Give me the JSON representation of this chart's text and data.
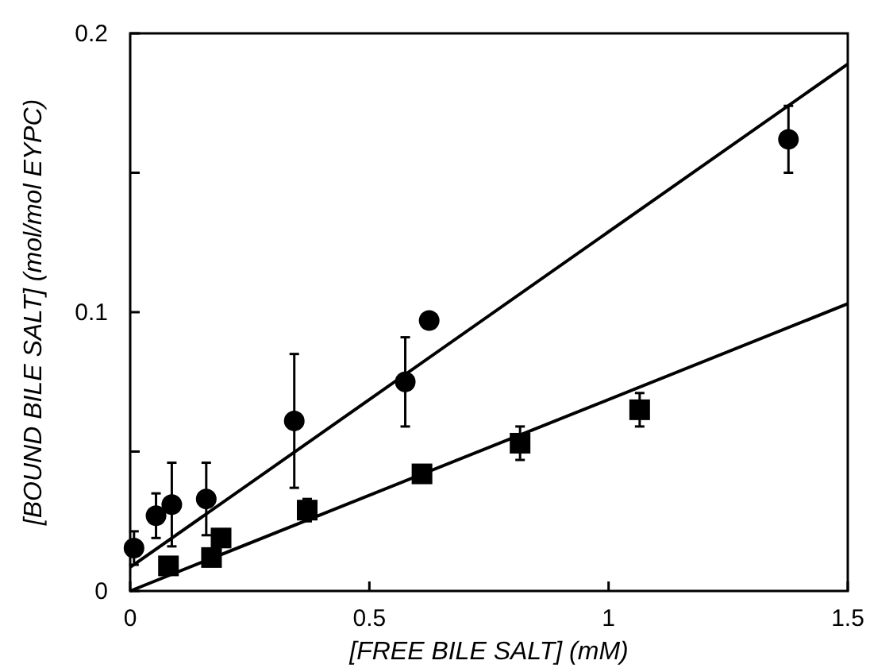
{
  "chart_data": {
    "type": "scatter",
    "xlabel": "[FREE BILE SALT] (mM)",
    "ylabel": "[BOUND BILE SALT] (mol/mol EYPC)",
    "xlim": [
      0,
      1.5
    ],
    "ylim": [
      0,
      0.2
    ],
    "xticks": [
      0,
      0.5,
      1,
      1.5
    ],
    "yticks": [
      0,
      {
        "value": 0.05,
        "label": null
      },
      0.1,
      {
        "value": 0.15,
        "label": null
      },
      0.2
    ],
    "grid": false,
    "series": [
      {
        "marker": "circle",
        "color": "#000000",
        "x": [
          0.008,
          0.054,
          0.087,
          0.159,
          0.343,
          0.575,
          0.625,
          1.376
        ],
        "values": [
          0.0154,
          0.027,
          0.031,
          0.033,
          0.061,
          0.075,
          0.097,
          0.162
        ],
        "errors": [
          0.006,
          0.008,
          0.015,
          0.013,
          0.024,
          0.016,
          null,
          0.012
        ]
      },
      {
        "marker": "square",
        "color": "#000000",
        "x": [
          0.08,
          0.17,
          0.19,
          0.37,
          0.61,
          0.815,
          1.065
        ],
        "values": [
          0.009,
          0.012,
          0.019,
          0.029,
          0.042,
          0.053,
          0.065
        ],
        "errors": [
          null,
          null,
          null,
          0.004,
          null,
          0.006,
          0.006
        ]
      },
      {
        "type": "line",
        "color": "#000000",
        "line_style": "solid",
        "x": [
          0,
          1.5
        ],
        "values": [
          0.0085,
          0.189
        ]
      },
      {
        "type": "line",
        "color": "#000000",
        "line_style": "solid",
        "x": [
          0,
          1.5
        ],
        "values": [
          0,
          0.103
        ]
      }
    ]
  }
}
